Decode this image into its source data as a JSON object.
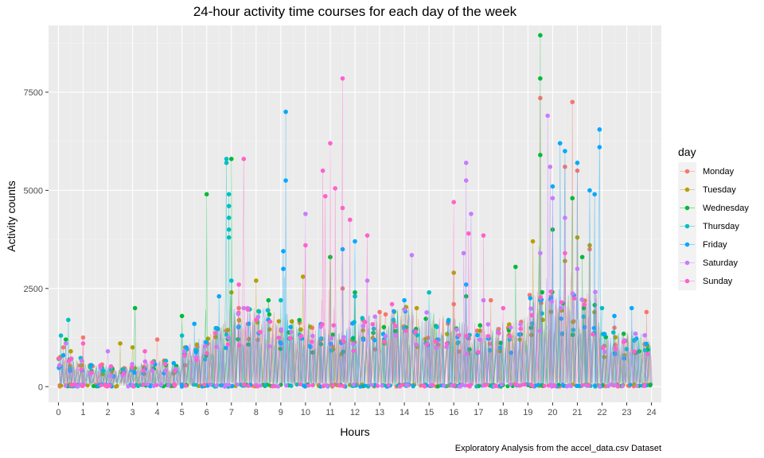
{
  "chart_data": {
    "type": "scatter",
    "title": "24-hour activity time courses for each day of the week",
    "xlabel": "Hours",
    "ylabel": "Activity counts",
    "caption": "Exploratory Analysis from the accel_data.csv Dataset",
    "xlim": [
      -0.4,
      24.4
    ],
    "ylim": [
      -400,
      9200
    ],
    "x_ticks": [
      "0",
      "1",
      "2",
      "3",
      "4",
      "5",
      "6",
      "7",
      "8",
      "9",
      "10",
      "11",
      "12",
      "13",
      "14",
      "15",
      "16",
      "17",
      "18",
      "19",
      "20",
      "21",
      "22",
      "23",
      "24"
    ],
    "y_ticks": [
      "0",
      "2500",
      "5000",
      "7500"
    ],
    "grid": true,
    "legend": {
      "title": "day",
      "position": "right"
    },
    "series": [
      {
        "name": "Monday",
        "color": "#F8766D",
        "peaks": [
          [
            0.2,
            1000
          ],
          [
            1.0,
            1250
          ],
          [
            4.0,
            1200
          ],
          [
            7.3,
            2000
          ],
          [
            11.5,
            2500
          ],
          [
            13.0,
            1900
          ],
          [
            16.0,
            2100
          ],
          [
            17.5,
            2200
          ],
          [
            18.2,
            1500
          ],
          [
            19.5,
            7350
          ],
          [
            20.5,
            5600
          ],
          [
            20.8,
            7250
          ],
          [
            21.0,
            5500
          ],
          [
            21.5,
            3500
          ],
          [
            22.5,
            1500
          ],
          [
            23.8,
            1900
          ]
        ]
      },
      {
        "name": "Tuesday",
        "color": "#B79F00",
        "peaks": [
          [
            0.5,
            900
          ],
          [
            2.5,
            1100
          ],
          [
            3.0,
            1000
          ],
          [
            7.0,
            2400
          ],
          [
            8.0,
            2700
          ],
          [
            9.9,
            2800
          ],
          [
            11.0,
            3300
          ],
          [
            12.0,
            2300
          ],
          [
            14.5,
            2000
          ],
          [
            16.0,
            2900
          ],
          [
            19.2,
            3700
          ],
          [
            20.5,
            3200
          ],
          [
            21.0,
            3800
          ],
          [
            21.5,
            3600
          ]
        ]
      },
      {
        "name": "Wednesday",
        "color": "#00BA38",
        "peaks": [
          [
            0.3,
            1200
          ],
          [
            3.1,
            2000
          ],
          [
            5.0,
            1800
          ],
          [
            6.0,
            4900
          ],
          [
            7.0,
            5800
          ],
          [
            8.5,
            2200
          ],
          [
            11.0,
            3300
          ],
          [
            12.0,
            2400
          ],
          [
            16.5,
            2300
          ],
          [
            18.5,
            3050
          ],
          [
            19.5,
            8950
          ],
          [
            19.5,
            7850
          ],
          [
            19.5,
            5900
          ],
          [
            20.0,
            4000
          ],
          [
            20.8,
            4800
          ],
          [
            21.2,
            3300
          ],
          [
            23.5,
            900
          ]
        ]
      },
      {
        "name": "Thursday",
        "color": "#00BFC4",
        "peaks": [
          [
            0.1,
            1300
          ],
          [
            0.4,
            1700
          ],
          [
            5.0,
            1300
          ],
          [
            6.8,
            5800
          ],
          [
            6.8,
            5700
          ],
          [
            6.9,
            4900
          ],
          [
            6.9,
            4600
          ],
          [
            6.9,
            4300
          ],
          [
            6.9,
            4000
          ],
          [
            6.9,
            3800
          ],
          [
            7.0,
            2700
          ],
          [
            9.0,
            2200
          ],
          [
            12.0,
            2300
          ],
          [
            15.0,
            2400
          ],
          [
            19.5,
            2200
          ],
          [
            22.0,
            2000
          ]
        ]
      },
      {
        "name": "Friday",
        "color": "#00A9FF",
        "peaks": [
          [
            0.2,
            800
          ],
          [
            5.5,
            1600
          ],
          [
            6.5,
            2300
          ],
          [
            9.2,
            7000
          ],
          [
            9.2,
            5250
          ],
          [
            9.1,
            3450
          ],
          [
            9.1,
            3000
          ],
          [
            11.5,
            3500
          ],
          [
            12.0,
            3700
          ],
          [
            14.0,
            2200
          ],
          [
            16.5,
            2600
          ],
          [
            20.0,
            5100
          ],
          [
            20.3,
            6200
          ],
          [
            20.5,
            6000
          ],
          [
            21.0,
            5700
          ],
          [
            21.5,
            5000
          ],
          [
            21.9,
            6550
          ],
          [
            21.9,
            6100
          ],
          [
            21.7,
            4900
          ],
          [
            22.5,
            1800
          ],
          [
            23.2,
            2000
          ]
        ]
      },
      {
        "name": "Saturday",
        "color": "#C77CFF",
        "peaks": [
          [
            0.3,
            1100
          ],
          [
            2.0,
            900
          ],
          [
            7.5,
            2000
          ],
          [
            10.0,
            4400
          ],
          [
            12.5,
            2700
          ],
          [
            14.3,
            3350
          ],
          [
            16.5,
            5700
          ],
          [
            16.5,
            5250
          ],
          [
            16.7,
            4400
          ],
          [
            16.4,
            3400
          ],
          [
            17.2,
            2200
          ],
          [
            19.5,
            3400
          ],
          [
            19.8,
            6900
          ],
          [
            19.9,
            5600
          ],
          [
            20.0,
            4800
          ],
          [
            20.5,
            4300
          ],
          [
            21.0,
            3000
          ]
        ]
      },
      {
        "name": "Sunday",
        "color": "#FF61CC",
        "peaks": [
          [
            0.5,
            700
          ],
          [
            1.0,
            1100
          ],
          [
            3.5,
            900
          ],
          [
            7.5,
            5800
          ],
          [
            7.3,
            2600
          ],
          [
            8.0,
            1700
          ],
          [
            10.0,
            3600
          ],
          [
            10.7,
            5500
          ],
          [
            10.8,
            4850
          ],
          [
            11.0,
            6200
          ],
          [
            11.2,
            5050
          ],
          [
            11.5,
            7850
          ],
          [
            11.5,
            4550
          ],
          [
            11.8,
            4250
          ],
          [
            12.5,
            3850
          ],
          [
            13.5,
            2100
          ],
          [
            16.0,
            4700
          ],
          [
            16.6,
            3900
          ],
          [
            17.2,
            3850
          ],
          [
            18.0,
            2000
          ],
          [
            20.5,
            3400
          ]
        ]
      }
    ]
  }
}
